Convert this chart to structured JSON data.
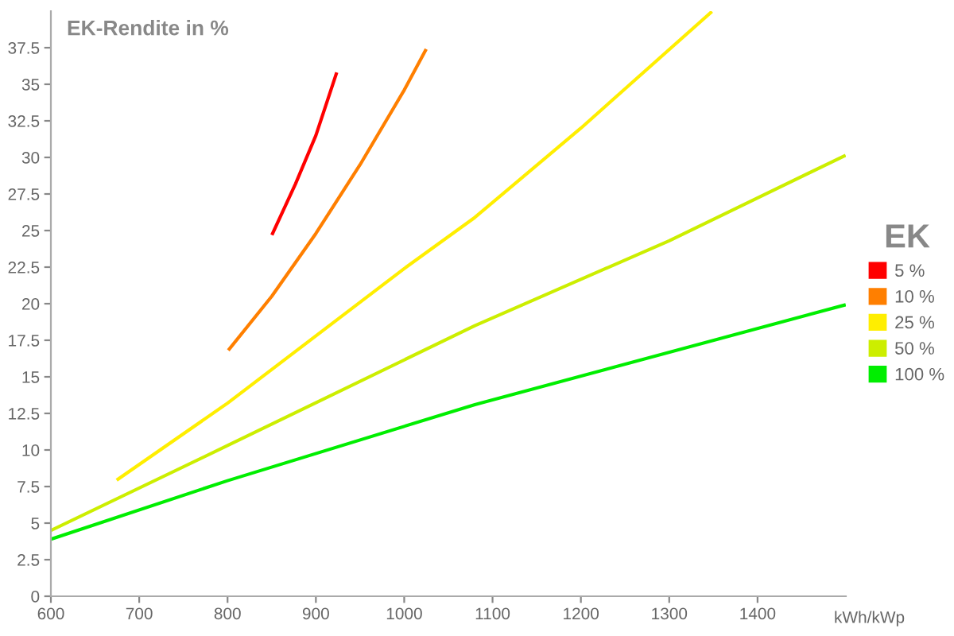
{
  "chart_data": {
    "type": "line",
    "title": "EK-Rendite in %",
    "xlabel": "kWh/kWp",
    "legend_title": "EK",
    "legend": "right",
    "grid": false,
    "marker": "none",
    "line_style": "solid",
    "xlim": [
      600,
      1500
    ],
    "xticks": [
      600,
      700,
      800,
      900,
      1000,
      1100,
      1200,
      1300,
      1400
    ],
    "ylim": [
      0,
      40
    ],
    "yticks": [
      0,
      2.5,
      5,
      7.5,
      10,
      12.5,
      15,
      17.5,
      20,
      22.5,
      25,
      27.5,
      30,
      32.5,
      35,
      37.5
    ],
    "series": [
      {
        "name": "5 %",
        "color": "#ff0000",
        "x": [
          851,
          877,
          900,
          923
        ],
        "values": [
          24.8,
          28.2,
          31.5,
          35.7
        ]
      },
      {
        "name": "10 %",
        "color": "#ff7f00",
        "x": [
          802,
          850,
          900,
          950,
          1000,
          1024
        ],
        "values": [
          16.9,
          20.5,
          24.8,
          29.5,
          34.6,
          37.3
        ]
      },
      {
        "name": "25 %",
        "color": "#ffee00",
        "x": [
          676,
          800,
          1000,
          1080,
          1200,
          1347
        ],
        "values": [
          8.0,
          13.2,
          22.4,
          25.9,
          32.0,
          39.9
        ]
      },
      {
        "name": "50 %",
        "color": "#ccee00",
        "x": [
          600,
          800,
          1080,
          1300,
          1498
        ],
        "values": [
          4.5,
          10.3,
          18.5,
          24.3,
          30.1
        ]
      },
      {
        "name": "100 %",
        "color": "#00ee00",
        "x": [
          600,
          800,
          1080,
          1498
        ],
        "values": [
          3.9,
          7.9,
          13.1,
          19.9
        ]
      }
    ]
  }
}
